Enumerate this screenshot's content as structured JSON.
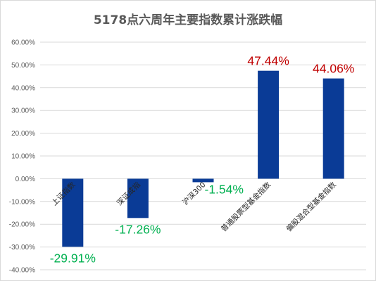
{
  "chart_data": {
    "type": "bar",
    "title": "5178点六周年主要指数累计涨跌幅",
    "categories": [
      "上证指数",
      "深证成指",
      "沪深300",
      "普通股票型基金指数",
      "偏股混合型基金指数"
    ],
    "values": [
      -29.91,
      -17.26,
      -1.54,
      47.44,
      44.06
    ],
    "data_labels": [
      "-29.91%",
      "-17.26%",
      "-1.54%",
      "47.44%",
      "44.06%"
    ],
    "ylim": [
      -40,
      60
    ],
    "yticks": [
      60,
      50,
      40,
      30,
      20,
      10,
      0,
      -10,
      -20,
      -30,
      -40
    ],
    "ytick_labels": [
      "60.00%",
      "50.00%",
      "40.00%",
      "30.00%",
      "20.00%",
      "10.00%",
      "0.00%",
      "-10.00%",
      "-20.00%",
      "-30.00%",
      "-40.00%"
    ],
    "grid": true,
    "xlabel": "",
    "ylabel": "",
    "colors": {
      "bar": "#0a3b96",
      "positive_label": "#c00000",
      "negative_label": "#00b050",
      "grid": "#d9d9d9"
    }
  }
}
